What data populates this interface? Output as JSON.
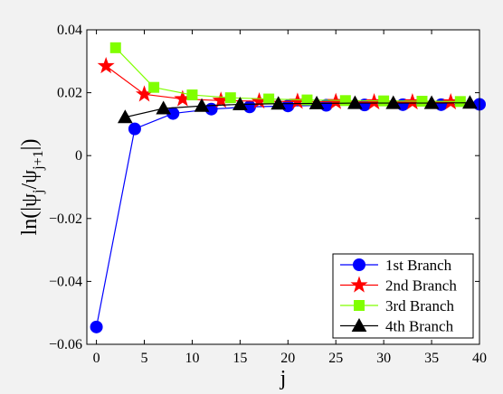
{
  "chart_data": {
    "type": "line",
    "xlabel": "j",
    "ylabel": "ln(|ψ_j/ψ_{j+1}|)",
    "xlim": [
      -1,
      40
    ],
    "ylim": [
      -0.06,
      0.04
    ],
    "xticks": [
      "0",
      "5",
      "10",
      "15",
      "20",
      "25",
      "30",
      "35",
      "40"
    ],
    "yticks": [
      "0.04",
      "0.02",
      "0",
      "−0.02",
      "−0.04",
      "−0.06"
    ],
    "legend_position": "bottom-right",
    "grid": false,
    "series": [
      {
        "name": "1st Branch",
        "color": "#0000ff",
        "marker": "circle",
        "x": [
          0,
          4,
          8,
          12,
          16,
          20,
          24,
          28,
          32,
          36,
          40
        ],
        "y": [
          -0.0545,
          0.0085,
          0.0134,
          0.0148,
          0.0155,
          0.0158,
          0.016,
          0.0161,
          0.0162,
          0.0162,
          0.0163
        ]
      },
      {
        "name": "2nd Branch",
        "color": "#ff0000",
        "marker": "star",
        "x": [
          1,
          5,
          9,
          13,
          17,
          21,
          25,
          29,
          33,
          37
        ],
        "y": [
          0.0285,
          0.0195,
          0.018,
          0.0175,
          0.0173,
          0.0172,
          0.0171,
          0.017,
          0.017,
          0.017
        ]
      },
      {
        "name": "3rd Branch",
        "color": "#80ff00",
        "marker": "square",
        "x": [
          2,
          6,
          10,
          14,
          18,
          22,
          26,
          30,
          34,
          38
        ],
        "y": [
          0.0343,
          0.0217,
          0.0193,
          0.0184,
          0.018,
          0.0177,
          0.0175,
          0.0174,
          0.0173,
          0.0172
        ]
      },
      {
        "name": "4th Branch",
        "color": "#000000",
        "marker": "triangle",
        "x": [
          3,
          7,
          11,
          15,
          19,
          23,
          27,
          31,
          35,
          39
        ],
        "y": [
          0.0122,
          0.015,
          0.0158,
          0.0163,
          0.0165,
          0.0166,
          0.0167,
          0.0167,
          0.0167,
          0.0168
        ]
      }
    ]
  }
}
